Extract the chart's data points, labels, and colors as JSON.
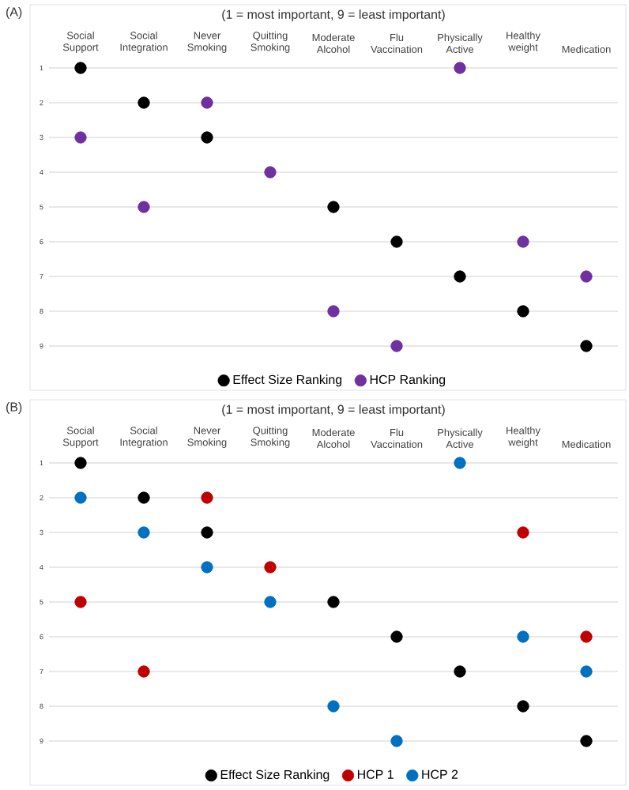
{
  "chart_data": [
    {
      "type": "scatter",
      "title": "(1 = most important, 9 = least important)",
      "annotations": [
        "(A)"
      ],
      "categories": [
        "Social Support",
        "Social Integration",
        "Never Smoking",
        "Quitting Smoking",
        "Moderate Alcohol",
        "Flu Vaccination",
        "Physically Active",
        "Healthy weight",
        "Medication"
      ],
      "series": [
        {
          "name": "Effect Size Ranking",
          "color": "#000000",
          "values": [
            1,
            2,
            3,
            null,
            5,
            6,
            7,
            8,
            9
          ]
        },
        {
          "name": "HCP Ranking",
          "color": "#7030a0",
          "values": [
            3,
            5,
            2,
            4,
            8,
            9,
            1,
            6,
            7
          ]
        }
      ],
      "ylim": [
        9,
        1
      ],
      "yticks": [
        1,
        2,
        3,
        4,
        5,
        6,
        7,
        8,
        9
      ],
      "grid": "y",
      "legend": "bottom",
      "marker": "circle"
    },
    {
      "type": "scatter",
      "title": "(1 = most important, 9 = least important)",
      "annotations": [
        "(B)"
      ],
      "categories": [
        "Social Support",
        "Social Integration",
        "Never Smoking",
        "Quitting Smoking",
        "Moderate Alcohol",
        "Flu Vaccination",
        "Physically Active",
        "Healthy weight",
        "Medication"
      ],
      "series": [
        {
          "name": "Effect Size Ranking",
          "color": "#000000",
          "values": [
            1,
            2,
            3,
            null,
            5,
            6,
            7,
            8,
            9
          ]
        },
        {
          "name": "HCP 1",
          "color": "#c00000",
          "values": [
            5,
            7,
            2,
            4,
            null,
            null,
            null,
            3,
            6
          ]
        },
        {
          "name": "HCP 2",
          "color": "#0070c0",
          "values": [
            2,
            3,
            4,
            5,
            8,
            9,
            1,
            6,
            7
          ]
        }
      ],
      "ylim": [
        9,
        1
      ],
      "yticks": [
        1,
        2,
        3,
        4,
        5,
        6,
        7,
        8,
        9
      ],
      "grid": "y",
      "legend": "bottom",
      "marker": "circle"
    }
  ]
}
